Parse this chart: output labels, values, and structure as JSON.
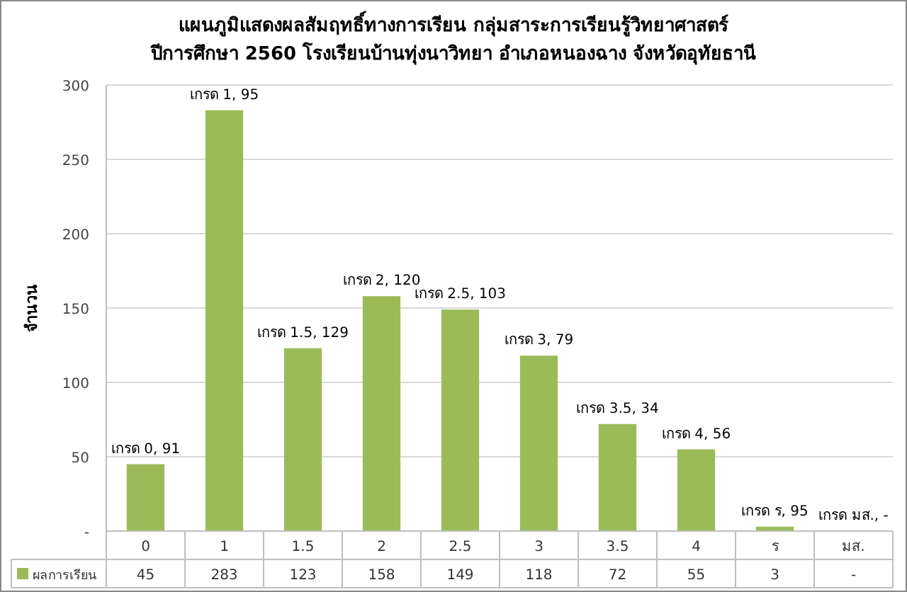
{
  "chart_data": {
    "type": "bar",
    "title": "แผนภูมิแสดงผลสัมฤทธิ์ทางการเรียน กลุ่มสาระการเรียนรู้วิทยาศาสตร์",
    "subtitle": "ปีการศึกษา 2560 โรงเรียนบ้านทุ่งนาวิทยา อำเภอหนองฉาง จังหวัดอุทัยธานี",
    "ylabel": "จำนวน",
    "categories": [
      "0",
      "1",
      "1.5",
      "2",
      "2.5",
      "3",
      "3.5",
      "4",
      "ร",
      "มส."
    ],
    "series": [
      {
        "name": "ผลการเรียน",
        "color": "#9bbb59",
        "values": [
          45,
          283,
          123,
          158,
          149,
          118,
          72,
          55,
          3,
          null
        ],
        "value_labels": [
          "45",
          "283",
          "123",
          "158",
          "149",
          "118",
          "72",
          "55",
          "3",
          "-"
        ]
      }
    ],
    "ylim": [
      0,
      300
    ],
    "yticks": [
      {
        "value": 0,
        "label": "-"
      },
      50,
      100,
      150,
      200,
      250,
      300
    ],
    "grid": "y",
    "legend": "bottom",
    "annotations": [
      {
        "text": "เกรด 0,  91",
        "x": "0",
        "y": 45
      },
      {
        "text": "เกรด 1,  95",
        "x": "1",
        "y": 283
      },
      {
        "text": "เกรด 1.5,  129",
        "x": "1.5",
        "y": 123
      },
      {
        "text": "เกรด 2,  120",
        "x": "2",
        "y": 158
      },
      {
        "text": "เกรด 2.5,  103",
        "x": "2.5",
        "y": 149
      },
      {
        "text": "เกรด 3,  79",
        "x": "3",
        "y": 118
      },
      {
        "text": "เกรด 3.5,  34",
        "x": "3.5",
        "y": 72
      },
      {
        "text": "เกรด  4,  56",
        "x": "4",
        "y": 55
      },
      {
        "text": "เกรด ร,  95",
        "x": "ร",
        "y": 3
      },
      "เกรด มส.,  -"
    ]
  }
}
